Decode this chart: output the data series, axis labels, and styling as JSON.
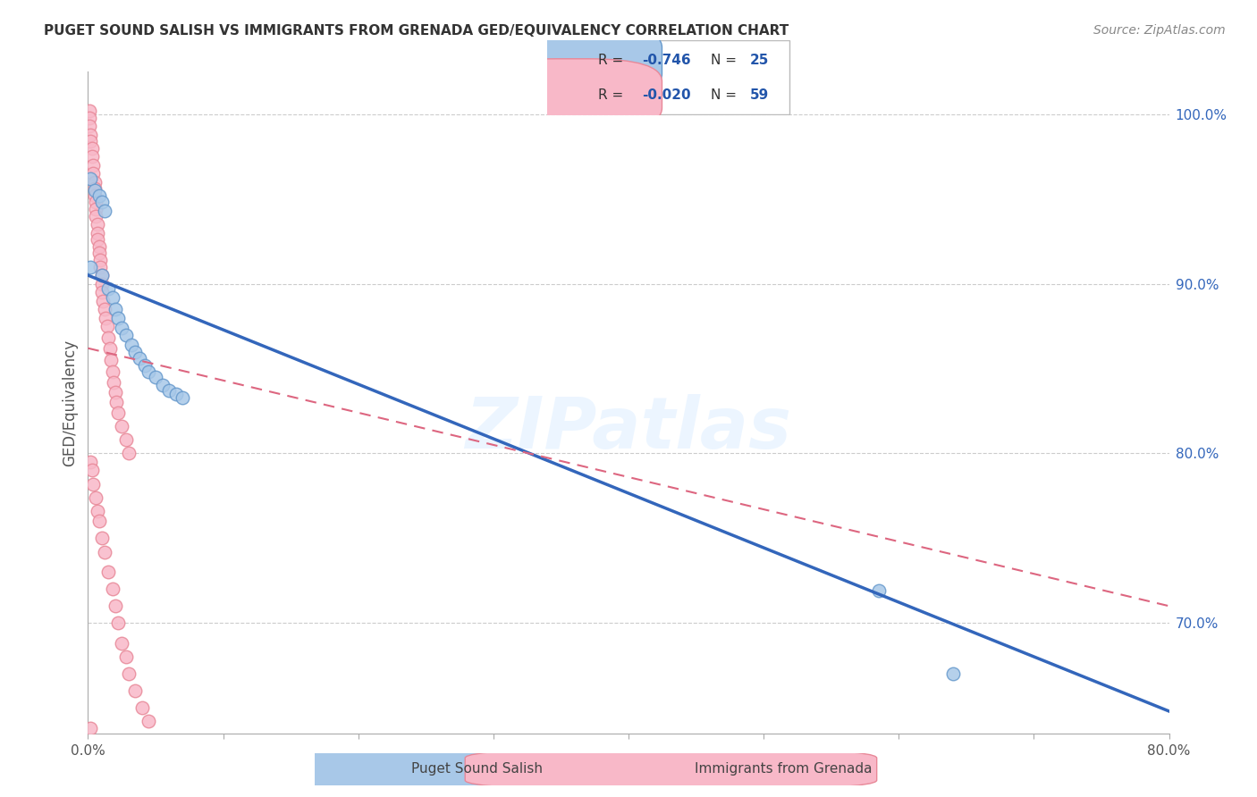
{
  "title": "PUGET SOUND SALISH VS IMMIGRANTS FROM GRENADA GED/EQUIVALENCY CORRELATION CHART",
  "source": "Source: ZipAtlas.com",
  "ylabel": "GED/Equivalency",
  "xlim": [
    0.0,
    0.8
  ],
  "ylim": [
    0.635,
    1.025
  ],
  "xtick_positions": [
    0.0,
    0.1,
    0.2,
    0.3,
    0.4,
    0.5,
    0.6,
    0.7,
    0.8
  ],
  "xticklabels": [
    "0.0%",
    "",
    "",
    "",
    "",
    "",
    "",
    "",
    "80.0%"
  ],
  "yticks_right": [
    0.7,
    0.8,
    0.9,
    1.0
  ],
  "ytick_right_labels": [
    "70.0%",
    "80.0%",
    "90.0%",
    "100.0%"
  ],
  "blue_dot_color": "#A8C8E8",
  "blue_edge_color": "#6699CC",
  "pink_dot_color": "#F8B8C8",
  "pink_edge_color": "#E88898",
  "blue_line_color": "#3366BB",
  "pink_line_color": "#DD6680",
  "grid_color": "#CCCCCC",
  "legend_R_blue": "-0.746",
  "legend_N_blue": "25",
  "legend_R_pink": "-0.020",
  "legend_N_pink": "59",
  "blue_line_x": [
    0.0,
    0.8
  ],
  "blue_line_y": [
    0.905,
    0.648
  ],
  "pink_line_x": [
    0.0,
    0.8
  ],
  "pink_line_y": [
    0.862,
    0.71
  ],
  "watermark": "ZIPatlas",
  "blue_x": [
    0.002,
    0.005,
    0.008,
    0.01,
    0.012,
    0.015,
    0.018,
    0.02,
    0.022,
    0.025,
    0.028,
    0.032,
    0.035,
    0.038,
    0.042,
    0.045,
    0.05,
    0.055,
    0.06,
    0.065,
    0.07,
    0.002,
    0.01,
    0.585,
    0.64
  ],
  "blue_y": [
    0.962,
    0.955,
    0.952,
    0.948,
    0.943,
    0.897,
    0.892,
    0.885,
    0.88,
    0.874,
    0.87,
    0.864,
    0.86,
    0.856,
    0.852,
    0.848,
    0.845,
    0.84,
    0.837,
    0.835,
    0.833,
    0.91,
    0.905,
    0.719,
    0.67
  ],
  "pink_x": [
    0.001,
    0.001,
    0.001,
    0.002,
    0.002,
    0.003,
    0.003,
    0.004,
    0.004,
    0.005,
    0.005,
    0.005,
    0.006,
    0.006,
    0.006,
    0.007,
    0.007,
    0.007,
    0.008,
    0.008,
    0.009,
    0.009,
    0.01,
    0.01,
    0.01,
    0.011,
    0.012,
    0.013,
    0.014,
    0.015,
    0.016,
    0.017,
    0.018,
    0.019,
    0.02,
    0.021,
    0.022,
    0.025,
    0.028,
    0.03,
    0.002,
    0.003,
    0.004,
    0.006,
    0.007,
    0.008,
    0.01,
    0.012,
    0.015,
    0.018,
    0.02,
    0.022,
    0.025,
    0.028,
    0.03,
    0.035,
    0.04,
    0.045,
    0.002
  ],
  "pink_y": [
    1.002,
    0.998,
    0.993,
    0.988,
    0.984,
    0.98,
    0.975,
    0.97,
    0.965,
    0.96,
    0.956,
    0.952,
    0.948,
    0.944,
    0.94,
    0.935,
    0.93,
    0.926,
    0.922,
    0.918,
    0.914,
    0.91,
    0.905,
    0.9,
    0.895,
    0.89,
    0.885,
    0.88,
    0.875,
    0.868,
    0.862,
    0.855,
    0.848,
    0.842,
    0.836,
    0.83,
    0.824,
    0.816,
    0.808,
    0.8,
    0.795,
    0.79,
    0.782,
    0.774,
    0.766,
    0.76,
    0.75,
    0.742,
    0.73,
    0.72,
    0.71,
    0.7,
    0.688,
    0.68,
    0.67,
    0.66,
    0.65,
    0.642,
    0.638
  ]
}
